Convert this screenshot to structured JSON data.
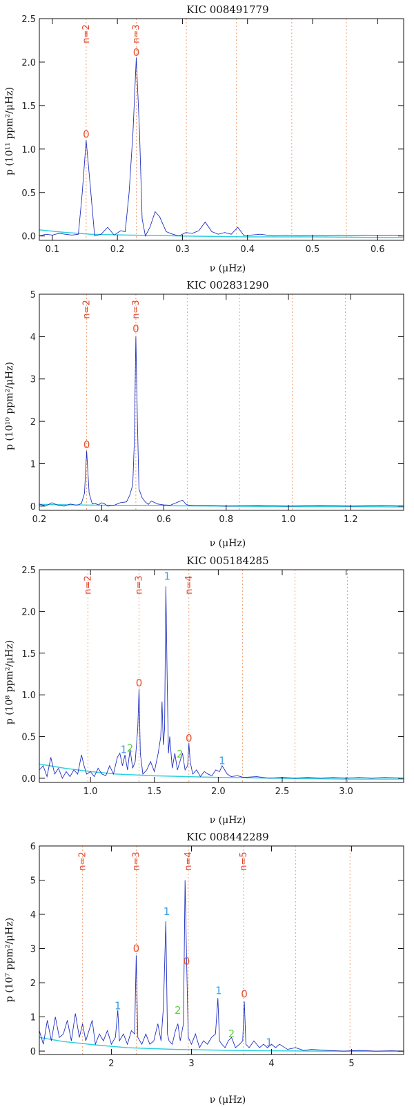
{
  "colors": {
    "spectrum": "#1f2fbf",
    "background_fit": "#2fd0e0",
    "order_line": "#f0a070",
    "order_text": "#e0402a",
    "l0": "#e55030",
    "l1": "#3a9fe8",
    "l2": "#5ad23a",
    "axis": "#111111"
  },
  "chart_data": [
    {
      "type": "line",
      "title": "KIC 008491779",
      "xlabel": "ν (μHz)",
      "ylabel": "p (10¹¹ ppm²/μHz)",
      "xlim": [
        0.08,
        0.64
      ],
      "ylim": [
        -0.05,
        2.5
      ],
      "xticks": [
        "0.1",
        "0.2",
        "0.3",
        "0.4",
        "0.5",
        "0.6"
      ],
      "xtick_values": [
        0.1,
        0.2,
        0.3,
        0.4,
        0.5,
        0.6
      ],
      "yticks": [
        "0.0",
        "0.5",
        "1.0",
        "1.5",
        "2.0",
        "2.5"
      ],
      "ytick_values": [
        0,
        0.5,
        1.0,
        1.5,
        2.0,
        2.5
      ],
      "order_lines": [
        0.152,
        0.229,
        0.306,
        0.383,
        0.468,
        0.552
      ],
      "order_labels": [
        {
          "x": 0.152,
          "text": "n=2"
        },
        {
          "x": 0.229,
          "text": "n=3"
        }
      ],
      "mode_labels": [
        {
          "x": 0.152,
          "y": 1.13,
          "text": "0",
          "l": 0
        },
        {
          "x": 0.229,
          "y": 2.07,
          "text": "0",
          "l": 0
        }
      ],
      "series": [
        {
          "x": [
            0.08,
            0.09,
            0.1,
            0.11,
            0.12,
            0.13,
            0.14,
            0.146,
            0.152,
            0.158,
            0.165,
            0.175,
            0.185,
            0.195,
            0.205,
            0.212,
            0.218,
            0.224,
            0.229,
            0.234,
            0.238,
            0.243,
            0.25,
            0.258,
            0.265,
            0.275,
            0.285,
            0.295,
            0.305,
            0.315,
            0.325,
            0.335,
            0.345,
            0.355,
            0.365,
            0.375,
            0.385,
            0.395,
            0.405,
            0.42,
            0.44,
            0.46,
            0.48,
            0.5,
            0.52,
            0.54,
            0.56,
            0.58,
            0.6,
            0.62,
            0.64
          ],
          "y": [
            0.0,
            0.02,
            0.01,
            0.03,
            0.02,
            0.01,
            0.02,
            0.5,
            1.1,
            0.6,
            0.0,
            0.02,
            0.1,
            0.01,
            0.06,
            0.05,
            0.5,
            1.2,
            2.05,
            1.2,
            0.2,
            0.0,
            0.1,
            0.28,
            0.22,
            0.05,
            0.02,
            0.0,
            0.04,
            0.03,
            0.06,
            0.16,
            0.05,
            0.02,
            0.04,
            0.02,
            0.1,
            0.0,
            0.01,
            0.02,
            0.0,
            0.01,
            0.0,
            0.01,
            0.0,
            0.01,
            0.0,
            0.01,
            0.0,
            0.01,
            0.0
          ]
        }
      ],
      "background": {
        "x": [
          0.08,
          0.12,
          0.16,
          0.22,
          0.3,
          0.4,
          0.5,
          0.64
        ],
        "y": [
          0.07,
          0.04,
          0.02,
          0.01,
          0.0,
          -0.01,
          -0.01,
          -0.02
        ]
      }
    },
    {
      "type": "line",
      "title": "KIC 002831290",
      "xlabel": "ν (μHz)",
      "ylabel": "p (10¹⁰ ppm²/μHz)",
      "xlim": [
        0.2,
        1.37
      ],
      "ylim": [
        -0.1,
        5.0
      ],
      "xticks": [
        "0.2",
        "0.4",
        "0.6",
        "0.8",
        "1.0",
        "1.2"
      ],
      "xtick_values": [
        0.2,
        0.4,
        0.6,
        0.8,
        1.0,
        1.2
      ],
      "yticks": [
        "0",
        "1",
        "2",
        "3",
        "4",
        "5"
      ],
      "ytick_values": [
        0,
        1,
        2,
        3,
        4,
        5
      ],
      "order_lines": [
        0.352,
        0.51,
        0.675,
        0.843,
        1.012,
        1.183
      ],
      "order_labels": [
        {
          "x": 0.352,
          "text": "n=2"
        },
        {
          "x": 0.51,
          "text": "n=3"
        }
      ],
      "mode_labels": [
        {
          "x": 0.352,
          "y": 1.37,
          "text": "0",
          "l": 0
        },
        {
          "x": 0.51,
          "y": 4.1,
          "text": "0",
          "l": 0
        }
      ],
      "series": [
        {
          "x": [
            0.2,
            0.22,
            0.24,
            0.26,
            0.28,
            0.3,
            0.32,
            0.335,
            0.345,
            0.352,
            0.36,
            0.37,
            0.38,
            0.39,
            0.4,
            0.41,
            0.42,
            0.44,
            0.46,
            0.48,
            0.49,
            0.5,
            0.505,
            0.51,
            0.515,
            0.52,
            0.53,
            0.54,
            0.55,
            0.56,
            0.58,
            0.6,
            0.62,
            0.64,
            0.66,
            0.67,
            0.68,
            0.7,
            0.75,
            0.8,
            0.9,
            1.0,
            1.1,
            1.2,
            1.3,
            1.37
          ],
          "y": [
            0.05,
            0.0,
            0.08,
            0.02,
            0.0,
            0.05,
            0.02,
            0.06,
            0.3,
            1.3,
            0.3,
            0.05,
            0.06,
            0.03,
            0.08,
            0.05,
            0.0,
            0.02,
            0.08,
            0.1,
            0.25,
            0.5,
            1.5,
            4.0,
            2.0,
            0.4,
            0.2,
            0.1,
            0.04,
            0.12,
            0.05,
            0.03,
            0.02,
            0.08,
            0.14,
            0.05,
            0.02,
            0.01,
            0.01,
            0.0,
            0.01,
            0.0,
            0.01,
            0.0,
            0.01,
            0.0
          ]
        }
      ],
      "background": {
        "x": [
          0.2,
          0.3,
          0.4,
          0.6,
          0.8,
          1.0,
          1.2,
          1.37
        ],
        "y": [
          0.04,
          0.03,
          0.02,
          0.01,
          0.0,
          -0.01,
          -0.01,
          -0.02
        ]
      }
    },
    {
      "type": "line",
      "title": "KIC 005184285",
      "xlabel": "ν (μHz)",
      "ylabel": "p (10⁸ ppm²/μHz)",
      "xlim": [
        0.6,
        3.45
      ],
      "ylim": [
        -0.05,
        2.5
      ],
      "xticks": [
        "1.0",
        "1.5",
        "2.0",
        "2.5",
        "3.0"
      ],
      "xtick_values": [
        1.0,
        1.5,
        2.0,
        2.5,
        3.0
      ],
      "yticks": [
        "0.0",
        "0.5",
        "1.0",
        "1.5",
        "2.0",
        "2.5"
      ],
      "ytick_values": [
        0,
        0.5,
        1.0,
        1.5,
        2.0,
        2.5
      ],
      "order_lines": [
        0.98,
        1.38,
        1.77,
        2.19,
        2.6,
        3.01
      ],
      "order_labels": [
        {
          "x": 0.98,
          "text": "n=2"
        },
        {
          "x": 1.38,
          "text": "n=3"
        },
        {
          "x": 1.77,
          "text": "n=4"
        }
      ],
      "mode_labels": [
        {
          "x": 1.38,
          "y": 1.1,
          "text": "0",
          "l": 0
        },
        {
          "x": 1.77,
          "y": 0.44,
          "text": "0",
          "l": 0
        },
        {
          "x": 1.6,
          "y": 2.38,
          "text": "1",
          "l": 1
        },
        {
          "x": 1.26,
          "y": 0.3,
          "text": "1",
          "l": 1
        },
        {
          "x": 2.03,
          "y": 0.17,
          "text": "1",
          "l": 1
        },
        {
          "x": 1.31,
          "y": 0.32,
          "text": "2",
          "l": 2
        },
        {
          "x": 1.7,
          "y": 0.25,
          "text": "2",
          "l": 2
        }
      ],
      "series": [
        {
          "x": [
            0.6,
            0.63,
            0.66,
            0.69,
            0.72,
            0.75,
            0.78,
            0.81,
            0.84,
            0.87,
            0.9,
            0.93,
            0.95,
            0.97,
            1.0,
            1.03,
            1.06,
            1.09,
            1.12,
            1.15,
            1.18,
            1.21,
            1.23,
            1.25,
            1.27,
            1.29,
            1.31,
            1.33,
            1.35,
            1.37,
            1.38,
            1.39,
            1.41,
            1.44,
            1.47,
            1.5,
            1.53,
            1.55,
            1.56,
            1.57,
            1.58,
            1.59,
            1.6,
            1.61,
            1.62,
            1.64,
            1.66,
            1.68,
            1.7,
            1.72,
            1.74,
            1.76,
            1.77,
            1.78,
            1.8,
            1.83,
            1.86,
            1.89,
            1.92,
            1.95,
            1.98,
            2.01,
            2.03,
            2.05,
            2.07,
            2.1,
            2.15,
            2.2,
            2.3,
            2.4,
            2.5,
            2.6,
            2.7,
            2.8,
            2.9,
            3.0,
            3.1,
            3.2,
            3.3,
            3.45
          ],
          "y": [
            0.1,
            0.15,
            0.02,
            0.25,
            0.05,
            0.12,
            0.0,
            0.08,
            0.02,
            0.1,
            0.05,
            0.28,
            0.15,
            0.05,
            0.08,
            0.02,
            0.12,
            0.05,
            0.03,
            0.15,
            0.05,
            0.25,
            0.3,
            0.15,
            0.28,
            0.1,
            0.35,
            0.12,
            0.2,
            0.6,
            1.07,
            0.3,
            0.05,
            0.1,
            0.2,
            0.08,
            0.3,
            0.5,
            0.92,
            0.4,
            0.6,
            2.3,
            1.2,
            0.3,
            0.5,
            0.12,
            0.3,
            0.1,
            0.2,
            0.3,
            0.1,
            0.15,
            0.42,
            0.2,
            0.05,
            0.1,
            0.02,
            0.08,
            0.05,
            0.03,
            0.1,
            0.08,
            0.15,
            0.1,
            0.05,
            0.02,
            0.03,
            0.01,
            0.02,
            0.0,
            0.01,
            0.0,
            0.01,
            0.0,
            0.01,
            0.0,
            0.01,
            0.0,
            0.01,
            0.0
          ]
        }
      ],
      "background": {
        "x": [
          0.6,
          0.8,
          1.0,
          1.2,
          1.5,
          2.0,
          2.5,
          3.0,
          3.45
        ],
        "y": [
          0.17,
          0.12,
          0.08,
          0.05,
          0.03,
          0.01,
          0.0,
          -0.01,
          -0.01
        ]
      }
    },
    {
      "type": "line",
      "title": "KIC 008442289",
      "xlabel": "ν (μHz)",
      "ylabel": "p (10⁷ ppm²/μHz)",
      "xlim": [
        1.1,
        5.65
      ],
      "ylim": [
        -0.1,
        6.0
      ],
      "xticks": [
        "2",
        "3",
        "4",
        "5"
      ],
      "xtick_values": [
        2,
        3,
        4,
        5
      ],
      "yticks": [
        "0",
        "1",
        "2",
        "3",
        "4",
        "5",
        "6"
      ],
      "ytick_values": [
        0,
        1,
        2,
        3,
        4,
        5,
        6
      ],
      "order_lines": [
        1.64,
        2.31,
        2.96,
        3.65,
        4.3,
        4.98
      ],
      "order_labels": [
        {
          "x": 1.64,
          "text": "n=2"
        },
        {
          "x": 2.31,
          "text": "n=3"
        },
        {
          "x": 2.96,
          "text": "n=4"
        },
        {
          "x": 3.65,
          "text": "n=5"
        }
      ],
      "mode_labels": [
        {
          "x": 2.31,
          "y": 2.9,
          "text": "0",
          "l": 0
        },
        {
          "x": 2.94,
          "y": 2.53,
          "text": "0",
          "l": 0
        },
        {
          "x": 3.66,
          "y": 1.57,
          "text": "0",
          "l": 0
        },
        {
          "x": 2.69,
          "y": 3.98,
          "text": "1",
          "l": 1
        },
        {
          "x": 2.08,
          "y": 1.22,
          "text": "1",
          "l": 1
        },
        {
          "x": 3.34,
          "y": 1.67,
          "text": "1",
          "l": 1
        },
        {
          "x": 3.97,
          "y": 0.15,
          "text": "1",
          "l": 1
        },
        {
          "x": 2.83,
          "y": 1.09,
          "text": "2",
          "l": 2
        },
        {
          "x": 3.5,
          "y": 0.4,
          "text": "2",
          "l": 2
        }
      ],
      "series": [
        {
          "x": [
            1.1,
            1.15,
            1.2,
            1.25,
            1.3,
            1.35,
            1.4,
            1.45,
            1.5,
            1.55,
            1.6,
            1.64,
            1.68,
            1.72,
            1.76,
            1.8,
            1.85,
            1.9,
            1.95,
            2.0,
            2.05,
            2.08,
            2.1,
            2.15,
            2.2,
            2.25,
            2.29,
            2.31,
            2.33,
            2.38,
            2.43,
            2.48,
            2.53,
            2.58,
            2.62,
            2.65,
            2.68,
            2.7,
            2.72,
            2.76,
            2.8,
            2.83,
            2.86,
            2.9,
            2.92,
            2.94,
            2.96,
            3.0,
            3.05,
            3.1,
            3.15,
            3.2,
            3.25,
            3.3,
            3.33,
            3.35,
            3.38,
            3.42,
            3.46,
            3.5,
            3.55,
            3.6,
            3.64,
            3.66,
            3.68,
            3.72,
            3.78,
            3.85,
            3.9,
            3.95,
            4.0,
            4.05,
            4.1,
            4.2,
            4.3,
            4.4,
            4.5,
            4.7,
            4.9,
            5.1,
            5.3,
            5.5,
            5.65
          ],
          "y": [
            0.6,
            0.2,
            0.9,
            0.3,
            1.0,
            0.4,
            0.5,
            0.9,
            0.3,
            1.1,
            0.4,
            0.8,
            0.3,
            0.6,
            0.9,
            0.2,
            0.5,
            0.3,
            0.6,
            0.2,
            0.4,
            1.2,
            0.3,
            0.5,
            0.2,
            0.6,
            0.5,
            2.8,
            0.4,
            0.2,
            0.5,
            0.2,
            0.3,
            0.8,
            0.3,
            1.3,
            3.8,
            0.5,
            0.3,
            0.2,
            0.6,
            0.8,
            0.3,
            0.8,
            5.0,
            2.6,
            0.4,
            0.2,
            0.5,
            0.1,
            0.3,
            0.2,
            0.4,
            0.5,
            1.55,
            0.3,
            0.2,
            0.1,
            0.3,
            0.4,
            0.1,
            0.2,
            0.3,
            1.45,
            0.2,
            0.1,
            0.3,
            0.1,
            0.2,
            0.1,
            0.2,
            0.1,
            0.2,
            0.05,
            0.1,
            0.02,
            0.05,
            0.02,
            0.0,
            0.02,
            0.0,
            0.01,
            0.0
          ]
        }
      ],
      "background": {
        "x": [
          1.1,
          1.4,
          1.8,
          2.2,
          2.8,
          3.5,
          4.5,
          5.65
        ],
        "y": [
          0.4,
          0.28,
          0.18,
          0.1,
          0.05,
          0.02,
          0.0,
          -0.01
        ]
      }
    }
  ]
}
